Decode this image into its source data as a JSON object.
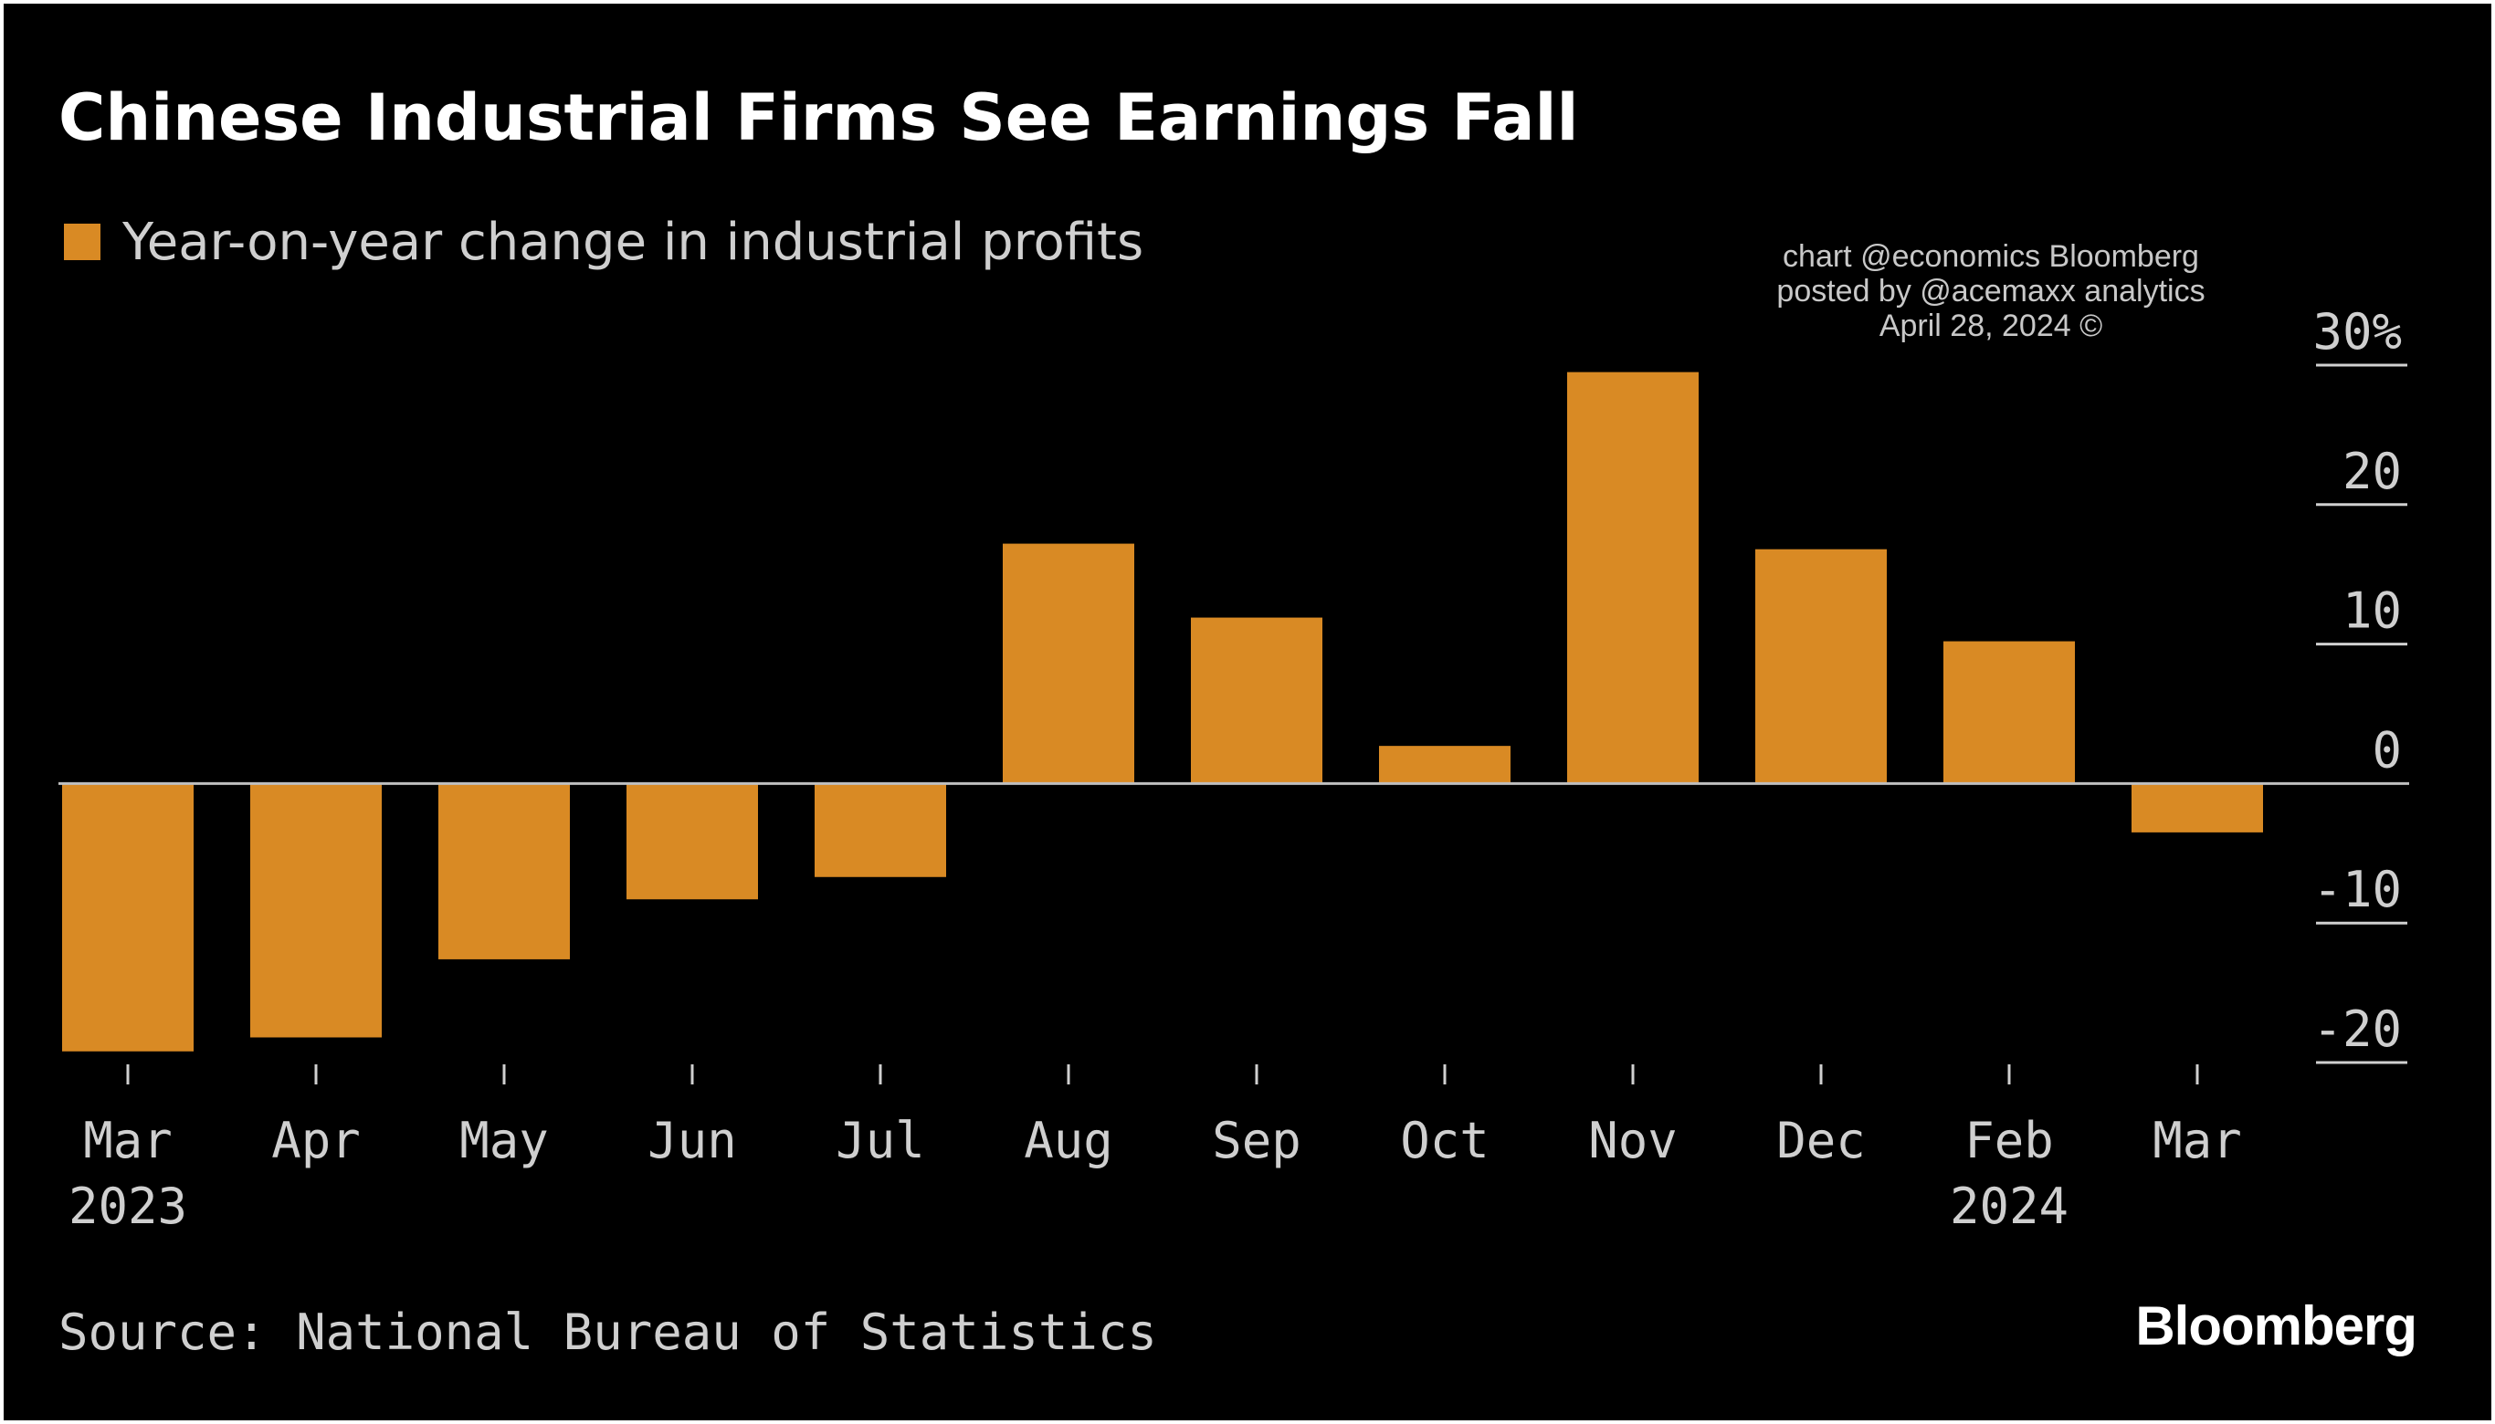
{
  "header": {
    "title": "Chinese Industrial Firms See Earnings Fall"
  },
  "legend": {
    "label": "Year-on-year change in industrial profits",
    "color": "#d98a24"
  },
  "credit": {
    "line1": "chart @economics Bloomberg",
    "line2": "posted by @acemaxx analytics",
    "line3": "April 28, 2024 ©"
  },
  "footer": {
    "source": "Source: National Bureau of Statistics",
    "brand": "Bloomberg"
  },
  "colors": {
    "background": "#000000",
    "bar": "#d98a24",
    "text": "#cfcfcf",
    "title": "#ffffff",
    "zero_line": "#bfbfbf"
  },
  "chart_data": {
    "type": "bar",
    "categories": [
      "Mar",
      "Apr",
      "May",
      "Jun",
      "Jul",
      "Aug",
      "Sep",
      "Oct",
      "Nov",
      "Dec",
      "Feb",
      "Mar"
    ],
    "category_years": [
      "2023",
      "",
      "",
      "",
      "",
      "",
      "",
      "",
      "",
      "",
      "2024",
      ""
    ],
    "series": [
      {
        "name": "Year-on-year change in industrial profits",
        "values": [
          -19.2,
          -18.2,
          -12.6,
          -8.3,
          -6.7,
          17.2,
          11.9,
          2.7,
          29.5,
          16.8,
          10.2,
          -3.5
        ]
      }
    ],
    "ylim": [
      -20,
      30
    ],
    "yticks": [
      -20,
      -10,
      0,
      10,
      20,
      30
    ],
    "ytick_labels": [
      "-20",
      "-10",
      "0",
      "10",
      "20",
      "30%"
    ],
    "axis_position": "right",
    "grid": false,
    "legend_position": "top-left"
  }
}
